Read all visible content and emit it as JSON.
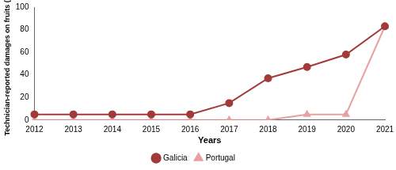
{
  "chart_data": {
    "type": "line",
    "x_label": "Years",
    "y_label": "Technician-reported damages on fruits (%)",
    "categories": [
      "2012",
      "2013",
      "2014",
      "2015",
      "2016",
      "2017",
      "2018",
      "2019",
      "2020",
      "2021"
    ],
    "series": [
      {
        "name": "Galicia",
        "color": "#a33a3a",
        "marker": "circle",
        "values": [
          5,
          5,
          5,
          5,
          5,
          15,
          37,
          47,
          58,
          83
        ]
      },
      {
        "name": "Portugal",
        "color": "#e8a0a0",
        "marker": "triangle",
        "values": [
          0,
          0,
          0,
          0,
          0,
          0,
          0,
          5,
          5,
          83
        ]
      }
    ],
    "ylim": [
      0,
      100
    ],
    "yticks": [
      0,
      20,
      40,
      60,
      80,
      100
    ],
    "grid": false,
    "legend": "bottom"
  }
}
